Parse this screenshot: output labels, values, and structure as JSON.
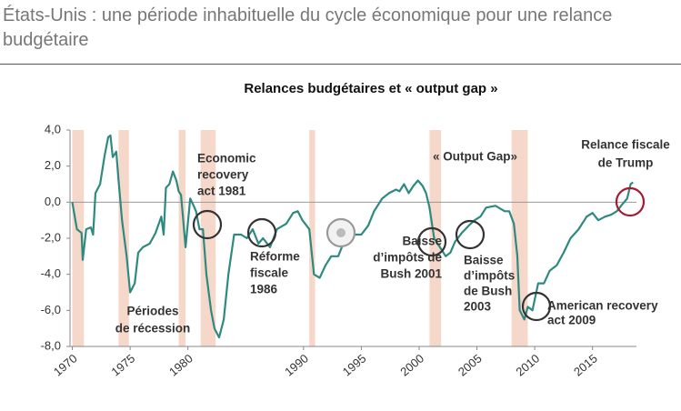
{
  "header": {
    "title": "États-Unis : une période inhabituelle du cycle économique pour une relance budgétaire"
  },
  "chart_data": {
    "type": "line",
    "title": "Relances budgétaires et « output gap »",
    "x": [
      1970.0,
      1970.4,
      1970.8,
      1970.9,
      1971.2,
      1971.6,
      1971.8,
      1972.0,
      1972.4,
      1972.8,
      1973.1,
      1973.3,
      1973.5,
      1973.8,
      1974.0,
      1974.3,
      1974.7,
      1975.0,
      1975.4,
      1975.7,
      1976.1,
      1976.7,
      1977.2,
      1977.7,
      1977.9,
      1978.1,
      1978.4,
      1978.7,
      1979.0,
      1979.2,
      1979.4,
      1979.8,
      1980.2,
      1980.5,
      1980.7,
      1981.0,
      1981.3,
      1981.6,
      1982.0,
      1982.3,
      1982.7,
      1983.1,
      1983.5,
      1984.0,
      1984.6,
      1985.1,
      1985.6,
      1986.1,
      1986.5,
      1987.1,
      1987.7,
      1988.5,
      1989.1,
      1989.5,
      1989.9,
      1990.5,
      1990.9,
      1991.4,
      1991.9,
      1992.4,
      1993.0,
      1993.5,
      1993.9,
      1994.4,
      1995.0,
      1995.6,
      1996.1,
      1996.8,
      1997.4,
      1998.0,
      1998.3,
      1998.7,
      1999.1,
      1999.5,
      1999.9,
      2000.3,
      2000.6,
      2000.9,
      2001.3,
      2001.8,
      2002.3,
      2002.7,
      2003.1,
      2003.7,
      2004.3,
      2004.8,
      2005.3,
      2005.8,
      2006.6,
      2007.4,
      2007.8,
      2008.2,
      2008.5,
      2008.7,
      2009.1,
      2009.4,
      2009.8,
      2010.3,
      2010.8,
      2011.3,
      2011.9,
      2012.5,
      2013.1,
      2013.8,
      2014.5,
      2015.0,
      2015.5,
      2016.1,
      2016.6,
      2017.1,
      2017.6,
      2018.0,
      2018.3,
      2018.5
    ],
    "values": [
      0.0,
      -1.5,
      -1.7,
      -3.2,
      -1.5,
      -1.4,
      -1.8,
      0.5,
      1.0,
      2.6,
      3.6,
      3.7,
      2.5,
      2.8,
      1.2,
      -1.0,
      -3.0,
      -5.0,
      -4.5,
      -2.8,
      -2.5,
      -2.3,
      -1.7,
      -0.8,
      -1.8,
      0.8,
      1.0,
      1.7,
      1.2,
      0.6,
      0.4,
      -2.5,
      0.2,
      -0.2,
      -0.5,
      -1.5,
      -1.5,
      -4.0,
      -6.0,
      -7.0,
      -7.5,
      -6.5,
      -4.0,
      -1.8,
      -1.8,
      -2.0,
      -1.5,
      -2.3,
      -2.0,
      -2.5,
      -1.5,
      -1.2,
      -0.6,
      -0.5,
      -1.0,
      -1.5,
      -4.0,
      -4.2,
      -3.5,
      -3.0,
      -3.0,
      -2.2,
      -2.0,
      -1.8,
      -1.8,
      -1.3,
      -0.5,
      0.2,
      0.5,
      0.7,
      0.6,
      1.0,
      0.5,
      0.9,
      1.2,
      0.9,
      0.5,
      -0.3,
      -2.0,
      -2.5,
      -3.0,
      -2.8,
      -2.2,
      -1.7,
      -1.3,
      -1.0,
      -0.8,
      -0.3,
      -0.2,
      -0.5,
      -0.5,
      -1.2,
      -3.0,
      -6.0,
      -6.5,
      -5.8,
      -6.0,
      -4.5,
      -4.5,
      -3.8,
      -3.5,
      -2.8,
      -2.0,
      -1.5,
      -0.8,
      -0.6,
      -1.0,
      -0.8,
      -0.7,
      -0.5,
      -0.1,
      0.2,
      1.0,
      1.1
    ],
    "color": "#2e8a80",
    "recessions": [
      [
        1970.0,
        1971.0
      ],
      [
        1974.0,
        1974.9
      ],
      [
        1979.2,
        1979.8
      ],
      [
        1981.1,
        1982.4
      ],
      [
        1990.5,
        1991.0
      ],
      [
        2000.9,
        2001.9
      ],
      [
        2008.0,
        2009.4
      ]
    ],
    "recession_color": "#f6d8cb",
    "xlim": [
      1969.8,
      2018.8
    ],
    "xticks": [
      1970,
      1975,
      1980,
      1990,
      1995,
      2000,
      2005,
      2010,
      2015
    ],
    "ylim": [
      -8,
      4
    ],
    "yticks": [
      {
        "value": 4,
        "label": "4,0"
      },
      {
        "value": 2,
        "label": "2,0"
      },
      {
        "value": 0,
        "label": "0,0"
      },
      {
        "value": -2,
        "label": "-2,0"
      },
      {
        "value": -4,
        "label": "-4,0"
      },
      {
        "value": -6,
        "label": "-6,0"
      },
      {
        "value": -8,
        "label": "-8,0"
      }
    ],
    "annotations": [
      {
        "lines": [
          "Economic",
          "recovery",
          "act 1981"
        ]
      },
      {
        "lines": [
          "Réforme",
          "fiscale",
          "1986"
        ]
      },
      {
        "lines": [
          "Baisse",
          "d’impôts de",
          "Bush 2001"
        ]
      },
      {
        "lines": [
          "Baisse",
          "d’impôts",
          "de Bush",
          "2003"
        ]
      },
      {
        "lines": [
          "American recovery",
          "act 2009"
        ]
      },
      {
        "lines": [
          "Périodes",
          "de récession"
        ]
      },
      {
        "lines": [
          "Relance fiscale",
          "de Trump"
        ]
      },
      {
        "lines": [
          "« Output Gap»"
        ]
      }
    ]
  }
}
